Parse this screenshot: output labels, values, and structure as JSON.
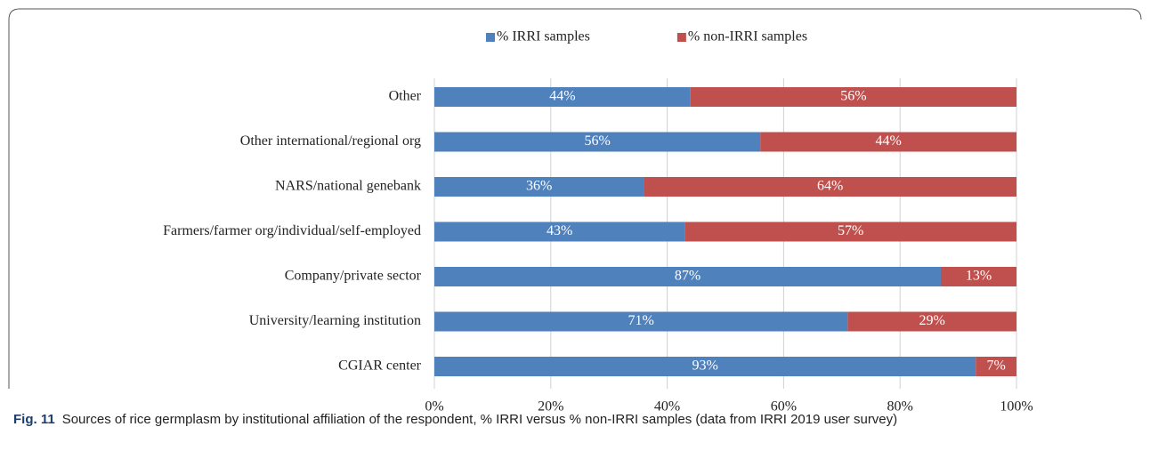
{
  "chart_data": {
    "type": "stacked_barh",
    "categories": [
      "Other",
      "Other international/regional org",
      "NARS/national genebank",
      "Farmers/farmer org/individual/self-employed",
      "Company/private sector",
      "University/learning institution",
      "CGIAR center"
    ],
    "series": [
      {
        "name": "% IRRI samples",
        "color": "#4f81bd",
        "values": [
          44,
          56,
          36,
          43,
          87,
          71,
          93
        ],
        "value_labels": [
          "44%",
          "56%",
          "36%",
          "43%",
          "87%",
          "71%",
          "93%"
        ]
      },
      {
        "name": "% non-IRRI samples",
        "color": "#c0504d",
        "values": [
          56,
          44,
          64,
          57,
          13,
          29,
          7
        ],
        "value_labels": [
          "56%",
          "44%",
          "64%",
          "57%",
          "13%",
          "29%",
          "7%"
        ]
      }
    ],
    "xlim": [
      0,
      100
    ],
    "xticks": [
      {
        "value": 0,
        "label": "0%"
      },
      {
        "value": 20,
        "label": "20%"
      },
      {
        "value": 40,
        "label": "40%"
      },
      {
        "value": 60,
        "label": "60%"
      },
      {
        "value": 80,
        "label": "80%"
      },
      {
        "value": 100,
        "label": "100%"
      }
    ],
    "grid": true,
    "legend": "top",
    "caption_label": "Fig. 11",
    "caption": "Sources of rice germplasm by institutional affiliation of the respondent, % IRRI versus % non-IRRI samples (data from IRRI 2019 user survey)"
  }
}
